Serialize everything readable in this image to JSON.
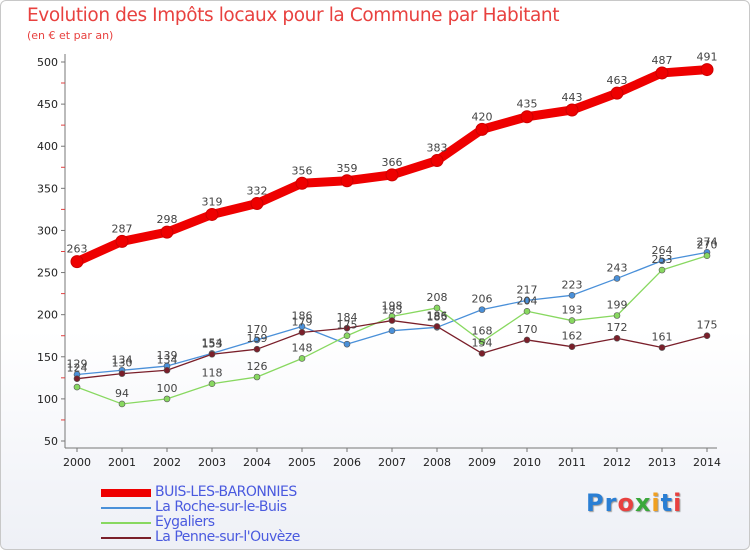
{
  "header": {
    "title": "Evolution des Impôts locaux pour la Commune par Habitant",
    "subtitle": "(en € et par an)"
  },
  "logo": {
    "text": "Proxiti",
    "letters": [
      {
        "ch": "P",
        "color": "#2a7fd4"
      },
      {
        "ch": "r",
        "color": "#2a7fd4"
      },
      {
        "ch": "o",
        "color": "#e8413f"
      },
      {
        "ch": "x",
        "color": "#3aa83a"
      },
      {
        "ch": "i",
        "color": "#f0a020"
      },
      {
        "ch": "t",
        "color": "#2a7fd4"
      },
      {
        "ch": "i",
        "color": "#e8413f"
      }
    ]
  },
  "chart_data": {
    "type": "line",
    "title": "Evolution des Impôts locaux pour la Commune par Habitant",
    "subtitle": "(en € et par an)",
    "x": [
      "2000",
      "2001",
      "2002",
      "2003",
      "2004",
      "2005",
      "2006",
      "2007",
      "2008",
      "2009",
      "2010",
      "2011",
      "2012",
      "2013",
      "2014"
    ],
    "y_ticks": [
      50,
      100,
      150,
      200,
      250,
      300,
      350,
      400,
      450,
      500
    ],
    "ylim": [
      50,
      500
    ],
    "grid": false,
    "legend_position": "bottom-left",
    "series": [
      {
        "name": "BUIS-LES-BARONNIES",
        "color": "#ee0000",
        "values": [
          263,
          287,
          298,
          319,
          332,
          356,
          359,
          366,
          383,
          420,
          435,
          443,
          463,
          487,
          491
        ],
        "labels": [
          "263",
          "287",
          "298",
          "319",
          "332",
          "356",
          "359",
          "366",
          "383",
          "420",
          "435",
          "443",
          "463",
          "487",
          "491"
        ]
      },
      {
        "name": "La Roche-sur-le-Buis",
        "color": "#4a90d9",
        "values": [
          129,
          134,
          139,
          154,
          170,
          186,
          165,
          181,
          185,
          206,
          217,
          223,
          243,
          264,
          274
        ],
        "labels": [
          "129",
          "134",
          "139",
          "154",
          "170",
          "186",
          "",
          "",
          "185",
          "206",
          "217",
          "223",
          "243",
          "264",
          "274"
        ]
      },
      {
        "name": "Eygaliers",
        "color": "#88d860",
        "values": [
          114,
          94,
          100,
          118,
          126,
          148,
          175,
          198,
          208,
          168,
          204,
          193,
          199,
          253,
          270
        ],
        "labels": [
          "",
          "94",
          "100",
          "118",
          "126",
          "148",
          "175",
          "198",
          "208",
          "168",
          "204",
          "193",
          "199",
          "253",
          "270"
        ]
      },
      {
        "name": "La Penne-sur-l'Ouvèze",
        "color": "#7a1f2a",
        "values": [
          124,
          130,
          134,
          153,
          159,
          179,
          184,
          193,
          186,
          154,
          170,
          162,
          172,
          161,
          175
        ],
        "labels": [
          "124",
          "130",
          "134",
          "153",
          "159",
          "179",
          "184",
          "193",
          "186",
          "154",
          "170",
          "162",
          "172",
          "161",
          "175"
        ]
      }
    ]
  }
}
